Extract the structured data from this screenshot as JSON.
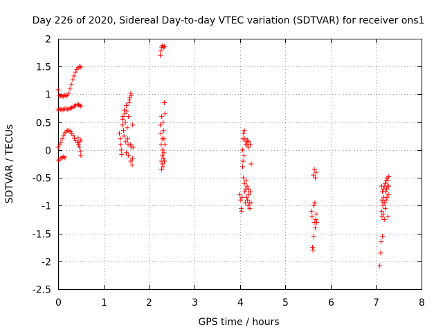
{
  "chart_data": {
    "type": "scatter",
    "title": "Day 226 of 2020, Sidereal Day-to-day VTEC variation (SDTVAR) for receiver ons1",
    "xlabel": "GPS time / hours",
    "ylabel": "SDTVAR / TECUs",
    "xlim": [
      0,
      8
    ],
    "ylim": [
      -2.5,
      2
    ],
    "xticks": [
      "0",
      "1",
      "2",
      "3",
      "4",
      "5",
      "6",
      "7",
      "8"
    ],
    "yticks": [
      "2",
      "1.5",
      "1",
      "0.5",
      "0",
      "-0.5",
      "-1",
      "-1.5",
      "-2",
      "-2.5"
    ],
    "grid": true,
    "marker": "+",
    "color": "#ff0000",
    "series": [
      {
        "name": "SDTVAR",
        "points": [
          [
            0.0,
            1.08
          ],
          [
            0.02,
            0.98
          ],
          [
            0.05,
            0.97
          ],
          [
            0.08,
            0.98
          ],
          [
            0.11,
            0.96
          ],
          [
            0.14,
            0.99
          ],
          [
            0.17,
            0.97
          ],
          [
            0.2,
            0.98
          ],
          [
            0.23,
            1.02
          ],
          [
            0.26,
            1.1
          ],
          [
            0.29,
            1.18
          ],
          [
            0.32,
            1.26
          ],
          [
            0.35,
            1.33
          ],
          [
            0.38,
            1.4
          ],
          [
            0.41,
            1.45
          ],
          [
            0.44,
            1.48
          ],
          [
            0.47,
            1.5
          ],
          [
            0.5,
            1.49
          ],
          [
            0.0,
            0.72
          ],
          [
            0.03,
            0.74
          ],
          [
            0.06,
            0.73
          ],
          [
            0.09,
            0.72
          ],
          [
            0.12,
            0.73
          ],
          [
            0.15,
            0.74
          ],
          [
            0.18,
            0.74
          ],
          [
            0.21,
            0.73
          ],
          [
            0.24,
            0.74
          ],
          [
            0.27,
            0.75
          ],
          [
            0.3,
            0.76
          ],
          [
            0.33,
            0.77
          ],
          [
            0.36,
            0.79
          ],
          [
            0.39,
            0.81
          ],
          [
            0.42,
            0.82
          ],
          [
            0.45,
            0.81
          ],
          [
            0.48,
            0.8
          ],
          [
            0.5,
            0.79
          ],
          [
            0.0,
            0.05
          ],
          [
            0.03,
            0.09
          ],
          [
            0.06,
            0.14
          ],
          [
            0.09,
            0.2
          ],
          [
            0.12,
            0.26
          ],
          [
            0.15,
            0.31
          ],
          [
            0.18,
            0.34
          ],
          [
            0.21,
            0.35
          ],
          [
            0.24,
            0.35
          ],
          [
            0.27,
            0.33
          ],
          [
            0.3,
            0.3
          ],
          [
            0.33,
            0.26
          ],
          [
            0.36,
            0.21
          ],
          [
            0.39,
            0.17
          ],
          [
            0.42,
            0.13
          ],
          [
            0.45,
            0.1
          ],
          [
            0.48,
            0.15
          ],
          [
            0.5,
            0.18
          ],
          [
            0.44,
            0.22
          ],
          [
            0.47,
            0.05
          ],
          [
            0.49,
            -0.02
          ],
          [
            0.5,
            -0.1
          ],
          [
            0.0,
            -0.18
          ],
          [
            0.03,
            -0.18
          ],
          [
            0.06,
            -0.15
          ],
          [
            0.09,
            -0.13
          ],
          [
            0.12,
            -0.12
          ],
          [
            0.15,
            -0.14
          ],
          [
            1.35,
            0.3
          ],
          [
            1.37,
            0.2
          ],
          [
            1.38,
            0.1
          ],
          [
            1.39,
            0.0
          ],
          [
            1.4,
            -0.08
          ],
          [
            1.41,
            0.45
          ],
          [
            1.42,
            0.55
          ],
          [
            1.43,
            0.6
          ],
          [
            1.44,
            0.35
          ],
          [
            1.45,
            0.25
          ],
          [
            1.46,
            0.72
          ],
          [
            1.47,
            0.65
          ],
          [
            1.48,
            0.5
          ],
          [
            1.49,
            0.15
          ],
          [
            1.5,
            0.8
          ],
          [
            1.5,
            -0.05
          ],
          [
            1.51,
            0.7
          ],
          [
            1.52,
            0.4
          ],
          [
            1.53,
            0.2
          ],
          [
            1.54,
            0.1
          ],
          [
            1.55,
            0.6
          ],
          [
            1.55,
            -0.1
          ],
          [
            1.56,
            0.85
          ],
          [
            1.57,
            0.9
          ],
          [
            1.58,
            0.95
          ],
          [
            1.59,
            0.1
          ],
          [
            1.6,
            1.02
          ],
          [
            1.6,
            -0.2
          ],
          [
            1.61,
            0.98
          ],
          [
            1.62,
            0.05
          ],
          [
            1.63,
            -0.27
          ],
          [
            1.64,
            0.45
          ],
          [
            1.64,
            -0.15
          ],
          [
            1.65,
            0.05
          ],
          [
            2.25,
            1.7
          ],
          [
            2.26,
            1.78
          ],
          [
            2.28,
            1.85
          ],
          [
            2.3,
            1.88
          ],
          [
            2.32,
            1.84
          ],
          [
            2.34,
            1.86
          ],
          [
            2.25,
            0.45
          ],
          [
            2.26,
            0.3
          ],
          [
            2.27,
            0.1
          ],
          [
            2.27,
            -0.2
          ],
          [
            2.28,
            0.6
          ],
          [
            2.28,
            -0.35
          ],
          [
            2.29,
            0.2
          ],
          [
            2.29,
            -0.1
          ],
          [
            2.3,
            0.0
          ],
          [
            2.3,
            -0.25
          ],
          [
            2.31,
            0.5
          ],
          [
            2.31,
            -0.3
          ],
          [
            2.32,
            0.35
          ],
          [
            2.32,
            -0.15
          ],
          [
            2.33,
            0.2
          ],
          [
            2.33,
            -0.05
          ],
          [
            2.34,
            0.85
          ],
          [
            2.34,
            -0.2
          ],
          [
            2.35,
            0.1
          ],
          [
            2.35,
            0.65
          ],
          [
            4.0,
            -0.8
          ],
          [
            4.02,
            -0.9
          ],
          [
            4.03,
            -1.05
          ],
          [
            4.04,
            -1.1
          ],
          [
            4.05,
            -0.85
          ],
          [
            4.06,
            0.0
          ],
          [
            4.06,
            -0.3
          ],
          [
            4.07,
            0.2
          ],
          [
            4.07,
            -0.2
          ],
          [
            4.08,
            0.3
          ],
          [
            4.08,
            -0.5
          ],
          [
            4.09,
            -0.1
          ],
          [
            4.1,
            0.35
          ],
          [
            4.1,
            -0.6
          ],
          [
            4.11,
            0.2
          ],
          [
            4.11,
            -0.75
          ],
          [
            4.12,
            -0.95
          ],
          [
            4.13,
            0.1
          ],
          [
            4.13,
            -0.7
          ],
          [
            4.14,
            0.15
          ],
          [
            4.14,
            -0.55
          ],
          [
            4.15,
            -0.85
          ],
          [
            4.16,
            0.1
          ],
          [
            4.16,
            -0.65
          ],
          [
            4.17,
            0.18
          ],
          [
            4.17,
            -0.9
          ],
          [
            4.18,
            -1.0
          ],
          [
            4.19,
            0.05
          ],
          [
            4.19,
            -0.7
          ],
          [
            4.2,
            0.15
          ],
          [
            4.2,
            -0.8
          ],
          [
            4.21,
            -0.95
          ],
          [
            4.22,
            -1.05
          ],
          [
            4.23,
            0.1
          ],
          [
            4.23,
            -0.75
          ],
          [
            4.25,
            -0.25
          ],
          [
            4.25,
            -0.95
          ],
          [
            5.58,
            -1.1
          ],
          [
            5.59,
            -1.2
          ],
          [
            5.6,
            -1.75
          ],
          [
            5.61,
            -1.8
          ],
          [
            5.62,
            -0.45
          ],
          [
            5.63,
            -1.0
          ],
          [
            5.63,
            -1.55
          ],
          [
            5.64,
            -0.35
          ],
          [
            5.64,
            -1.3
          ],
          [
            5.65,
            -0.95
          ],
          [
            5.66,
            -0.5
          ],
          [
            5.66,
            -1.4
          ],
          [
            5.67,
            -1.25
          ],
          [
            5.68,
            -0.4
          ],
          [
            5.68,
            -1.15
          ],
          [
            5.69,
            -1.3
          ],
          [
            7.08,
            -2.08
          ],
          [
            7.1,
            -1.85
          ],
          [
            7.11,
            -1.65
          ],
          [
            7.12,
            -0.65
          ],
          [
            7.12,
            -1.1
          ],
          [
            7.13,
            -0.9
          ],
          [
            7.13,
            -1.2
          ],
          [
            7.14,
            -0.75
          ],
          [
            7.14,
            -1.55
          ],
          [
            7.15,
            -0.95
          ],
          [
            7.15,
            -1.0
          ],
          [
            7.16,
            -0.7
          ],
          [
            7.16,
            -1.15
          ],
          [
            7.17,
            -0.85
          ],
          [
            7.18,
            -0.65
          ],
          [
            7.18,
            -1.25
          ],
          [
            7.19,
            -0.95
          ],
          [
            7.2,
            -0.6
          ],
          [
            7.2,
            -1.05
          ],
          [
            7.21,
            -0.75
          ],
          [
            7.22,
            -0.55
          ],
          [
            7.22,
            -0.9
          ],
          [
            7.23,
            -0.7
          ],
          [
            7.24,
            -0.5
          ],
          [
            7.24,
            -0.85
          ],
          [
            7.25,
            -0.65
          ],
          [
            7.26,
            -0.55
          ],
          [
            7.26,
            -1.2
          ],
          [
            7.27,
            -0.8
          ],
          [
            7.28,
            -0.48
          ],
          [
            7.28,
            -0.65
          ]
        ]
      }
    ]
  }
}
